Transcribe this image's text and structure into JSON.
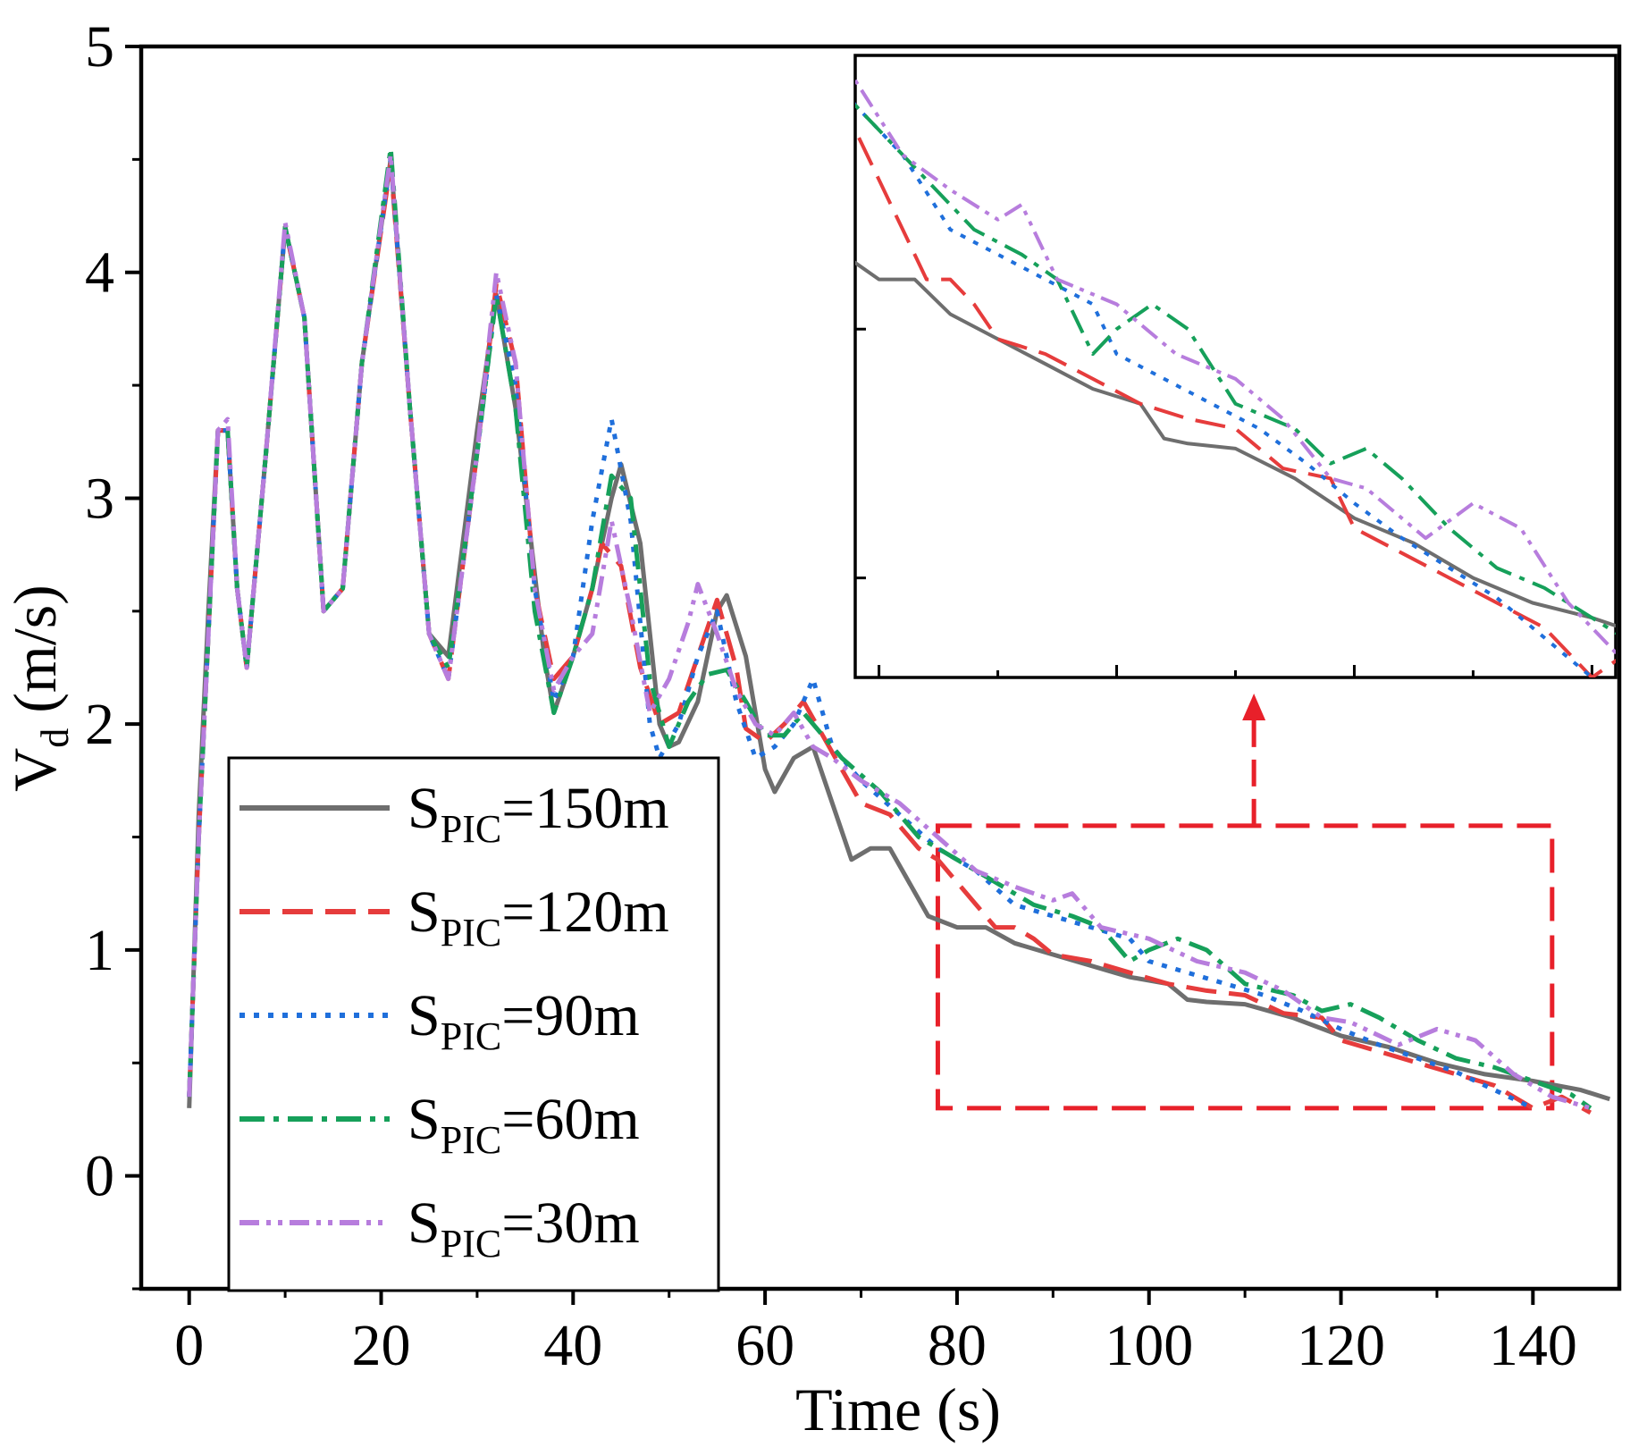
{
  "chart_data": {
    "type": "line",
    "xlabel": "Time (s)",
    "ylabel": {
      "main": "V",
      "sub": "d",
      "unit": " (m/s)"
    },
    "xlim": [
      -5,
      149
    ],
    "ylim": [
      -0.5,
      5
    ],
    "xticks": [
      0,
      20,
      40,
      60,
      80,
      100,
      120,
      140
    ],
    "yticks": [
      0,
      1,
      2,
      3,
      4,
      5
    ],
    "xtick_labels": [
      "0",
      "20",
      "40",
      "60",
      "80",
      "100",
      "120",
      "140"
    ],
    "ytick_labels": [
      "0",
      "1",
      "2",
      "3",
      "4",
      "5"
    ],
    "grid": false,
    "legend_position": "bottom-left",
    "series": [
      {
        "name": "SPIC=150m",
        "label_main": "S",
        "label_sub": "PIC",
        "label_rest": "=150m",
        "color": "#6e6e6e",
        "dash": "solid",
        "points": [
          [
            0,
            0.3
          ],
          [
            1,
            1.6
          ],
          [
            2,
            2.5
          ],
          [
            3,
            3.3
          ],
          [
            4,
            3.3
          ],
          [
            5,
            2.6
          ],
          [
            6,
            2.25
          ],
          [
            8,
            3.2
          ],
          [
            10,
            4.2
          ],
          [
            12,
            3.8
          ],
          [
            14,
            2.5
          ],
          [
            16,
            2.6
          ],
          [
            18,
            3.6
          ],
          [
            21,
            4.5
          ],
          [
            23,
            3.4
          ],
          [
            25,
            2.4
          ],
          [
            27,
            2.3
          ],
          [
            30,
            3.3
          ],
          [
            32,
            3.9
          ],
          [
            34,
            3.4
          ],
          [
            37,
            2.3
          ],
          [
            38,
            2.05
          ],
          [
            40,
            2.3
          ],
          [
            42,
            2.6
          ],
          [
            44,
            3.0
          ],
          [
            45,
            3.15
          ],
          [
            47,
            2.8
          ],
          [
            49,
            2.0
          ],
          [
            50,
            1.9
          ],
          [
            51,
            1.92
          ],
          [
            53,
            2.1
          ],
          [
            55,
            2.5
          ],
          [
            56,
            2.57
          ],
          [
            58,
            2.3
          ],
          [
            60,
            1.8
          ],
          [
            61,
            1.7
          ],
          [
            63,
            1.85
          ],
          [
            65,
            1.9
          ],
          [
            67,
            1.65
          ],
          [
            69,
            1.4
          ],
          [
            71,
            1.45
          ],
          [
            73,
            1.45
          ],
          [
            75,
            1.3
          ],
          [
            77,
            1.15
          ],
          [
            80,
            1.1
          ],
          [
            83,
            1.1
          ],
          [
            86,
            1.03
          ],
          [
            90,
            0.98
          ],
          [
            94,
            0.93
          ],
          [
            98,
            0.88
          ],
          [
            102,
            0.85
          ],
          [
            104,
            0.78
          ],
          [
            106,
            0.77
          ],
          [
            110,
            0.76
          ],
          [
            115,
            0.7
          ],
          [
            120,
            0.62
          ],
          [
            125,
            0.57
          ],
          [
            130,
            0.5
          ],
          [
            135,
            0.45
          ],
          [
            140,
            0.42
          ],
          [
            145,
            0.38
          ],
          [
            148,
            0.34
          ]
        ]
      },
      {
        "name": "SPIC=120m",
        "label_main": "S",
        "label_sub": "PIC",
        "label_rest": "=120m",
        "color": "#e63c3c",
        "dash": "long-dash",
        "points": [
          [
            0,
            0.35
          ],
          [
            1,
            1.5
          ],
          [
            2,
            2.4
          ],
          [
            3,
            3.3
          ],
          [
            4,
            3.3
          ],
          [
            5,
            2.6
          ],
          [
            6,
            2.25
          ],
          [
            8,
            3.2
          ],
          [
            10,
            4.2
          ],
          [
            12,
            3.8
          ],
          [
            14,
            2.5
          ],
          [
            16,
            2.6
          ],
          [
            18,
            3.6
          ],
          [
            21,
            4.48
          ],
          [
            23,
            3.4
          ],
          [
            25,
            2.4
          ],
          [
            27,
            2.2
          ],
          [
            30,
            3.2
          ],
          [
            32,
            3.95
          ],
          [
            34,
            3.6
          ],
          [
            36,
            2.6
          ],
          [
            38,
            2.2
          ],
          [
            40,
            2.3
          ],
          [
            42,
            2.6
          ],
          [
            43,
            2.8
          ],
          [
            45,
            2.7
          ],
          [
            47,
            2.25
          ],
          [
            49,
            2.0
          ],
          [
            51,
            2.05
          ],
          [
            53,
            2.3
          ],
          [
            55,
            2.55
          ],
          [
            57,
            2.25
          ],
          [
            58,
            1.98
          ],
          [
            60,
            1.92
          ],
          [
            62,
            2.0
          ],
          [
            64,
            2.1
          ],
          [
            66,
            1.95
          ],
          [
            68,
            1.8
          ],
          [
            70,
            1.65
          ],
          [
            73,
            1.6
          ],
          [
            76,
            1.45
          ],
          [
            78,
            1.4
          ],
          [
            80,
            1.3
          ],
          [
            82,
            1.2
          ],
          [
            84,
            1.1
          ],
          [
            86,
            1.1
          ],
          [
            88,
            1.05
          ],
          [
            90,
            0.98
          ],
          [
            94,
            0.95
          ],
          [
            98,
            0.9
          ],
          [
            102,
            0.85
          ],
          [
            106,
            0.82
          ],
          [
            110,
            0.8
          ],
          [
            114,
            0.72
          ],
          [
            118,
            0.7
          ],
          [
            120,
            0.6
          ],
          [
            124,
            0.55
          ],
          [
            128,
            0.5
          ],
          [
            132,
            0.45
          ],
          [
            136,
            0.4
          ],
          [
            140,
            0.3
          ],
          [
            143,
            0.35
          ],
          [
            146,
            0.28
          ]
        ]
      },
      {
        "name": "SPIC=90m",
        "label_main": "S",
        "label_sub": "PIC",
        "label_rest": "=90m",
        "color": "#1f6fdb",
        "dash": "dot",
        "points": [
          [
            0,
            0.35
          ],
          [
            1,
            1.5
          ],
          [
            2,
            2.4
          ],
          [
            3,
            3.3
          ],
          [
            4,
            3.3
          ],
          [
            5,
            2.6
          ],
          [
            6,
            2.25
          ],
          [
            8,
            3.2
          ],
          [
            10,
            4.2
          ],
          [
            12,
            3.8
          ],
          [
            14,
            2.5
          ],
          [
            16,
            2.6
          ],
          [
            18,
            3.6
          ],
          [
            21,
            4.5
          ],
          [
            23,
            3.4
          ],
          [
            25,
            2.4
          ],
          [
            27,
            2.2
          ],
          [
            30,
            3.2
          ],
          [
            32,
            3.9
          ],
          [
            34,
            3.5
          ],
          [
            36,
            2.6
          ],
          [
            38,
            2.1
          ],
          [
            40,
            2.3
          ],
          [
            42,
            2.9
          ],
          [
            44,
            3.35
          ],
          [
            46,
            2.9
          ],
          [
            48,
            2.0
          ],
          [
            49,
            1.85
          ],
          [
            51,
            2.0
          ],
          [
            53,
            2.3
          ],
          [
            55,
            2.5
          ],
          [
            57,
            2.1
          ],
          [
            59,
            1.85
          ],
          [
            61,
            1.9
          ],
          [
            63,
            2.0
          ],
          [
            65,
            2.2
          ],
          [
            67,
            1.9
          ],
          [
            70,
            1.75
          ],
          [
            74,
            1.6
          ],
          [
            78,
            1.45
          ],
          [
            82,
            1.35
          ],
          [
            86,
            1.2
          ],
          [
            90,
            1.15
          ],
          [
            94,
            1.1
          ],
          [
            98,
            1.05
          ],
          [
            100,
            0.95
          ],
          [
            104,
            0.9
          ],
          [
            108,
            0.85
          ],
          [
            112,
            0.8
          ],
          [
            116,
            0.73
          ],
          [
            120,
            0.65
          ],
          [
            124,
            0.58
          ],
          [
            128,
            0.52
          ],
          [
            132,
            0.46
          ],
          [
            136,
            0.38
          ],
          [
            140,
            0.3
          ]
        ]
      },
      {
        "name": "SPIC=60m",
        "label_main": "S",
        "label_sub": "PIC",
        "label_rest": "=60m",
        "color": "#16a05a",
        "dash": "dash-dot",
        "points": [
          [
            0,
            0.35
          ],
          [
            1,
            1.5
          ],
          [
            2,
            2.4
          ],
          [
            3,
            3.3
          ],
          [
            4,
            3.3
          ],
          [
            5,
            2.6
          ],
          [
            6,
            2.25
          ],
          [
            8,
            3.2
          ],
          [
            10,
            4.2
          ],
          [
            12,
            3.8
          ],
          [
            14,
            2.5
          ],
          [
            16,
            2.6
          ],
          [
            18,
            3.6
          ],
          [
            21,
            4.55
          ],
          [
            23,
            3.4
          ],
          [
            25,
            2.4
          ],
          [
            27,
            2.25
          ],
          [
            30,
            3.2
          ],
          [
            32,
            3.9
          ],
          [
            34,
            3.4
          ],
          [
            36,
            2.5
          ],
          [
            38,
            2.05
          ],
          [
            40,
            2.3
          ],
          [
            42,
            2.6
          ],
          [
            44,
            3.1
          ],
          [
            46,
            3.0
          ],
          [
            48,
            2.2
          ],
          [
            50,
            1.9
          ],
          [
            52,
            2.1
          ],
          [
            54,
            2.22
          ],
          [
            56,
            2.24
          ],
          [
            58,
            2.1
          ],
          [
            60,
            1.95
          ],
          [
            62,
            1.95
          ],
          [
            64,
            2.05
          ],
          [
            66,
            1.95
          ],
          [
            68,
            1.85
          ],
          [
            72,
            1.7
          ],
          [
            76,
            1.5
          ],
          [
            80,
            1.4
          ],
          [
            84,
            1.3
          ],
          [
            88,
            1.2
          ],
          [
            92,
            1.15
          ],
          [
            95,
            1.1
          ],
          [
            98,
            0.95
          ],
          [
            100,
            1.0
          ],
          [
            103,
            1.05
          ],
          [
            106,
            1.0
          ],
          [
            110,
            0.85
          ],
          [
            115,
            0.8
          ],
          [
            118,
            0.73
          ],
          [
            121,
            0.76
          ],
          [
            124,
            0.7
          ],
          [
            128,
            0.6
          ],
          [
            132,
            0.52
          ],
          [
            136,
            0.48
          ],
          [
            140,
            0.42
          ],
          [
            144,
            0.36
          ],
          [
            146,
            0.3
          ]
        ]
      },
      {
        "name": "SPIC=30m",
        "label_main": "S",
        "label_sub": "PIC",
        "label_rest": "=30m",
        "color": "#b77ddd",
        "dash": "dash-dot-dot",
        "points": [
          [
            0,
            0.35
          ],
          [
            1,
            1.5
          ],
          [
            2,
            2.4
          ],
          [
            3,
            3.3
          ],
          [
            4,
            3.35
          ],
          [
            5,
            2.6
          ],
          [
            6,
            2.25
          ],
          [
            8,
            3.2
          ],
          [
            10,
            4.22
          ],
          [
            12,
            3.8
          ],
          [
            14,
            2.5
          ],
          [
            16,
            2.6
          ],
          [
            18,
            3.6
          ],
          [
            21,
            4.52
          ],
          [
            23,
            3.4
          ],
          [
            25,
            2.4
          ],
          [
            27,
            2.2
          ],
          [
            30,
            3.2
          ],
          [
            32,
            4.0
          ],
          [
            34,
            3.6
          ],
          [
            36,
            2.6
          ],
          [
            38,
            2.15
          ],
          [
            40,
            2.3
          ],
          [
            42,
            2.4
          ],
          [
            44,
            2.9
          ],
          [
            46,
            2.5
          ],
          [
            48,
            2.05
          ],
          [
            50,
            2.2
          ],
          [
            52,
            2.45
          ],
          [
            53,
            2.62
          ],
          [
            55,
            2.4
          ],
          [
            57,
            2.15
          ],
          [
            59,
            2.0
          ],
          [
            61,
            1.95
          ],
          [
            63,
            2.05
          ],
          [
            65,
            1.9
          ],
          [
            67,
            1.85
          ],
          [
            70,
            1.75
          ],
          [
            74,
            1.65
          ],
          [
            78,
            1.5
          ],
          [
            82,
            1.35
          ],
          [
            86,
            1.28
          ],
          [
            90,
            1.22
          ],
          [
            92,
            1.25
          ],
          [
            95,
            1.1
          ],
          [
            100,
            1.05
          ],
          [
            105,
            0.95
          ],
          [
            110,
            0.9
          ],
          [
            114,
            0.82
          ],
          [
            118,
            0.7
          ],
          [
            121,
            0.68
          ],
          [
            124,
            0.62
          ],
          [
            126,
            0.58
          ],
          [
            130,
            0.65
          ],
          [
            134,
            0.6
          ],
          [
            138,
            0.45
          ],
          [
            142,
            0.35
          ],
          [
            146,
            0.3
          ]
        ]
      }
    ],
    "inset": {
      "x_range": [
        78,
        142
      ],
      "y_range": [
        0.3,
        1.55
      ],
      "y_major_ticks": 2,
      "arrow": true
    }
  }
}
